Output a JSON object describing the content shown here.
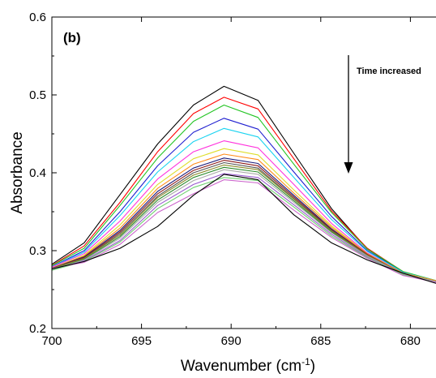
{
  "chart_data": {
    "type": "line",
    "xlabel": "Wavenumber (cm",
    "xlabel_superscript": "-1",
    "xlabel_suffix": ")",
    "ylabel": "Absorbance",
    "panel_label": "(b)",
    "annotation": "Time increased",
    "xlim": [
      700,
      678.3
    ],
    "ylim": [
      0.2,
      0.6
    ],
    "x_ticks": [
      700,
      695,
      690,
      685,
      680
    ],
    "x_tick_labels": [
      "700",
      "695",
      "690",
      "685",
      "680"
    ],
    "y_ticks": [
      0.2,
      0.3,
      0.4,
      0.5,
      0.6
    ],
    "y_tick_labels": [
      "0.2",
      "0.3",
      "0.4",
      "0.5",
      "0.6"
    ],
    "grid": false,
    "x": [
      700.3,
      698.2,
      696.2,
      694.1,
      692.1,
      690.4,
      688.5,
      686.5,
      684.4,
      682.4,
      680.4,
      678.3
    ],
    "series": [
      {
        "color": "#000000",
        "values": [
          0.278,
          0.31,
          0.372,
          0.437,
          0.487,
          0.511,
          0.493,
          0.425,
          0.354,
          0.302,
          0.272,
          0.258
        ]
      },
      {
        "color": "#ff0000",
        "values": [
          0.277,
          0.306,
          0.362,
          0.427,
          0.476,
          0.497,
          0.482,
          0.418,
          0.351,
          0.303,
          0.273,
          0.259
        ]
      },
      {
        "color": "#22c422",
        "values": [
          0.277,
          0.303,
          0.358,
          0.419,
          0.466,
          0.487,
          0.471,
          0.411,
          0.349,
          0.302,
          0.273,
          0.26
        ]
      },
      {
        "color": "#1f1fd0",
        "values": [
          0.276,
          0.3,
          0.35,
          0.409,
          0.452,
          0.47,
          0.456,
          0.401,
          0.344,
          0.3,
          0.272,
          0.259
        ]
      },
      {
        "color": "#1ad3f0",
        "values": [
          0.276,
          0.298,
          0.345,
          0.401,
          0.44,
          0.457,
          0.446,
          0.394,
          0.34,
          0.299,
          0.272,
          0.26
        ]
      },
      {
        "color": "#ff33dd",
        "values": [
          0.276,
          0.296,
          0.338,
          0.392,
          0.427,
          0.441,
          0.432,
          0.385,
          0.335,
          0.297,
          0.271,
          0.26
        ]
      },
      {
        "color": "#dede2a",
        "values": [
          0.275,
          0.294,
          0.333,
          0.385,
          0.418,
          0.431,
          0.423,
          0.378,
          0.332,
          0.296,
          0.271,
          0.26
        ]
      },
      {
        "color": "#ff8c1a",
        "values": [
          0.275,
          0.293,
          0.329,
          0.38,
          0.411,
          0.424,
          0.417,
          0.374,
          0.33,
          0.296,
          0.271,
          0.26
        ]
      },
      {
        "color": "#1c1c7a",
        "values": [
          0.275,
          0.292,
          0.326,
          0.376,
          0.406,
          0.419,
          0.412,
          0.371,
          0.328,
          0.295,
          0.27,
          0.259
        ]
      },
      {
        "color": "#8b1a1a",
        "values": [
          0.275,
          0.291,
          0.324,
          0.373,
          0.403,
          0.416,
          0.409,
          0.369,
          0.327,
          0.295,
          0.27,
          0.259
        ]
      },
      {
        "color": "#555555",
        "values": [
          0.275,
          0.29,
          0.322,
          0.37,
          0.4,
          0.413,
          0.406,
          0.367,
          0.326,
          0.294,
          0.27,
          0.259
        ]
      },
      {
        "color": "#8a8a2a",
        "values": [
          0.275,
          0.29,
          0.32,
          0.368,
          0.397,
          0.41,
          0.404,
          0.366,
          0.325,
          0.294,
          0.27,
          0.259
        ]
      },
      {
        "color": "#2a8a2a",
        "values": [
          0.274,
          0.289,
          0.318,
          0.365,
          0.394,
          0.407,
          0.401,
          0.364,
          0.324,
          0.293,
          0.27,
          0.259
        ]
      },
      {
        "color": "#aaaaaa",
        "values": [
          0.274,
          0.288,
          0.316,
          0.362,
          0.39,
          0.404,
          0.398,
          0.362,
          0.323,
          0.293,
          0.27,
          0.259
        ]
      },
      {
        "color": "#9b59d0",
        "values": [
          0.273,
          0.287,
          0.313,
          0.358,
          0.385,
          0.399,
          0.394,
          0.359,
          0.321,
          0.292,
          0.269,
          0.258
        ]
      },
      {
        "color": "#6fd06f",
        "values": [
          0.273,
          0.286,
          0.311,
          0.354,
          0.381,
          0.394,
          0.39,
          0.356,
          0.319,
          0.291,
          0.269,
          0.258
        ]
      },
      {
        "color": "#cc66cc",
        "values": [
          0.276,
          0.285,
          0.308,
          0.349,
          0.373,
          0.391,
          0.387,
          0.352,
          0.317,
          0.29,
          0.268,
          0.258
        ]
      },
      {
        "color": "#000000",
        "values": [
          0.275,
          0.286,
          0.303,
          0.331,
          0.371,
          0.398,
          0.391,
          0.346,
          0.31,
          0.288,
          0.271,
          0.256
        ]
      }
    ]
  }
}
